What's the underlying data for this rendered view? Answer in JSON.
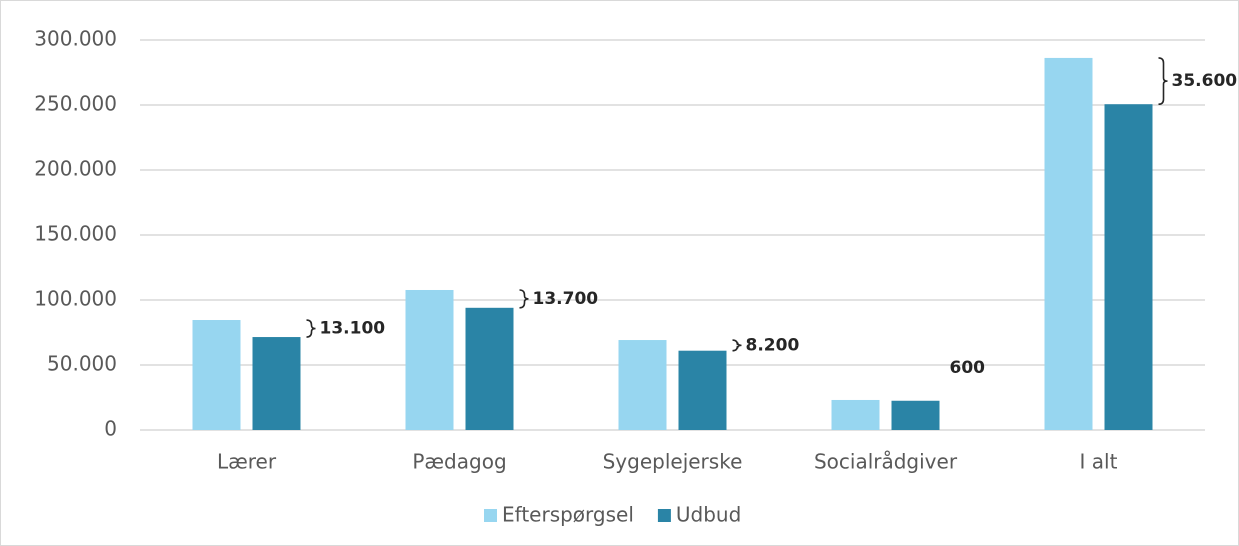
{
  "chart_data": {
    "type": "bar",
    "categories": [
      "Lærer",
      "Pædagog",
      "Sygeplejerske",
      "Socialrådgiver",
      "I alt"
    ],
    "series": [
      {
        "name": "Efterspørgsel",
        "color": "#97d6f0",
        "values": [
          84600,
          107700,
          69200,
          23100,
          286200
        ]
      },
      {
        "name": "Udbud",
        "color": "#2a84a6",
        "values": [
          71500,
          94000,
          61000,
          22500,
          250600
        ]
      }
    ],
    "annotations": [
      "13.100",
      "13.700",
      "8.200",
      "600",
      "35.600"
    ],
    "ylim": [
      0,
      300000
    ],
    "yticks": [
      0,
      {
        "value": 50000,
        "label": "50.000"
      },
      {
        "value": 100000,
        "label": "100.000"
      },
      {
        "value": 150000,
        "label": "150.000"
      },
      {
        "value": 200000,
        "label": "200.000"
      },
      {
        "value": 250000,
        "label": "250.000"
      },
      {
        "value": 300000,
        "label": "300.000"
      }
    ],
    "grid": true,
    "legend": "bottom"
  }
}
